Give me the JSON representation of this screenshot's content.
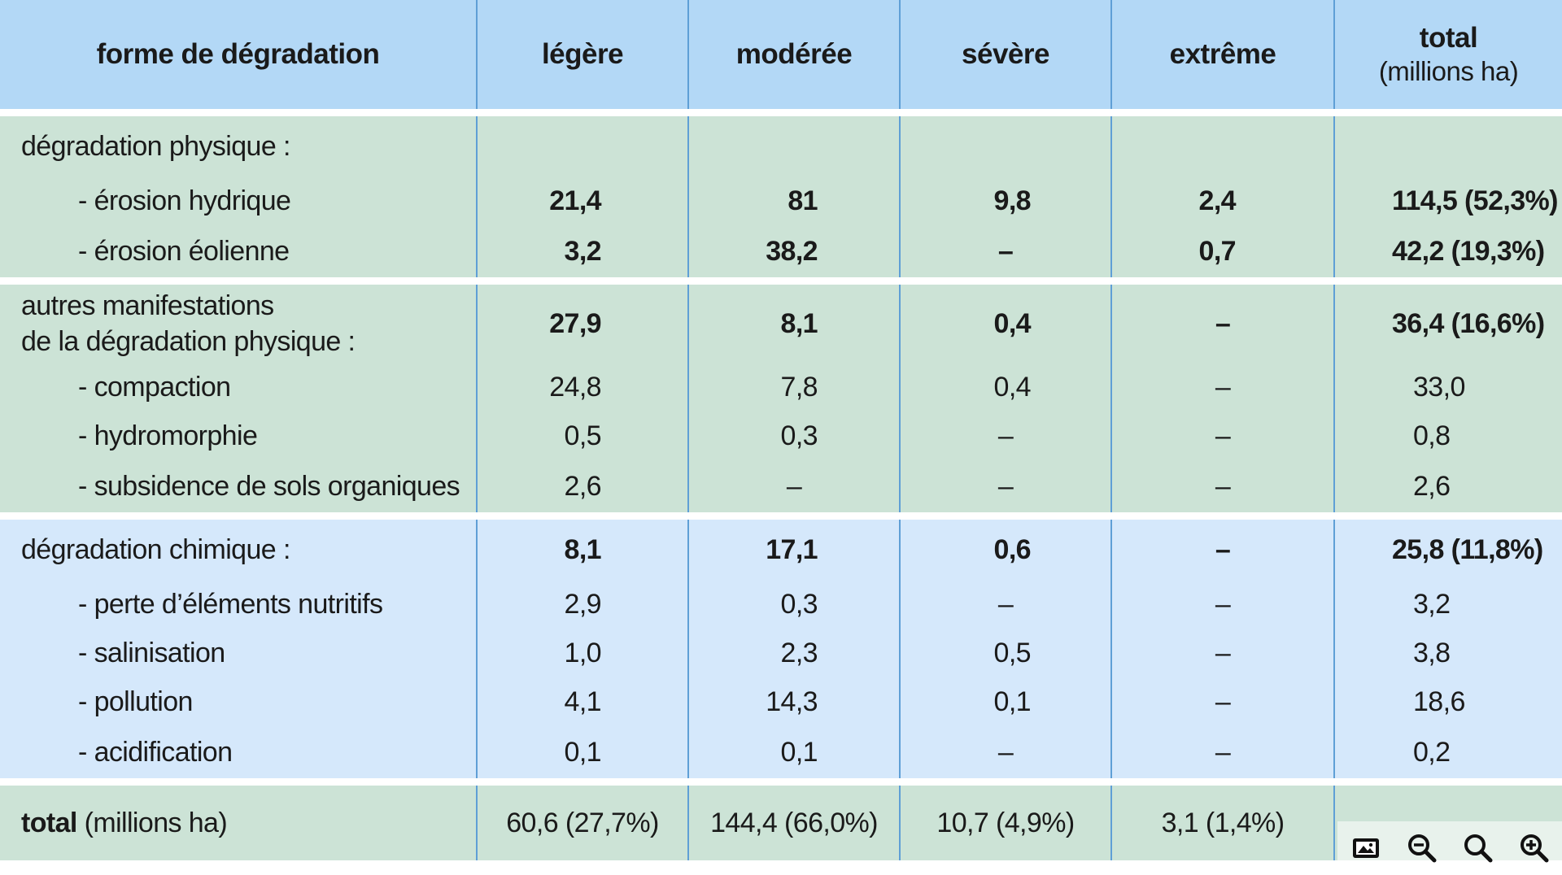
{
  "table": {
    "headers": [
      {
        "label": "forme de dégradation",
        "sub": ""
      },
      {
        "label": "légère",
        "sub": ""
      },
      {
        "label": "modérée",
        "sub": ""
      },
      {
        "label": "sévère",
        "sub": ""
      },
      {
        "label": "extrême",
        "sub": ""
      },
      {
        "label": "total",
        "sub": "(millions ha)"
      }
    ],
    "groups": {
      "physique": {
        "label": "dégradation physique :",
        "rows": [
          {
            "label": "- érosion hydrique",
            "values": [
              "21,4",
              "81",
              "9,8",
              "2,4",
              "114,5 (52,3%)"
            ]
          },
          {
            "label": "- érosion éolienne",
            "values": [
              "3,2",
              "38,2",
              "–",
              "0,7",
              "42,2 (19,3%)"
            ]
          }
        ]
      },
      "autres": {
        "label_line1": "autres manifestations",
        "label_line2": "de la dégradation physique :",
        "values": [
          "27,9",
          "8,1",
          "0,4",
          "–",
          "36,4 (16,6%)"
        ],
        "rows": [
          {
            "label": "- compaction",
            "values": [
              "24,8",
              "7,8",
              "0,4",
              "–",
              "33,0"
            ]
          },
          {
            "label": "- hydromorphie",
            "values": [
              "0,5",
              "0,3",
              "–",
              "–",
              "0,8"
            ]
          },
          {
            "label": "- subsidence de sols organiques",
            "values": [
              "2,6",
              "–",
              "–",
              "–",
              "2,6"
            ]
          }
        ]
      },
      "chimique": {
        "label": "dégradation chimique :",
        "values": [
          "8,1",
          "17,1",
          "0,6",
          "–",
          "25,8 (11,8%)"
        ],
        "rows": [
          {
            "label": "- perte d’éléments nutritifs",
            "values": [
              "2,9",
              "0,3",
              "–",
              "–",
              "3,2"
            ]
          },
          {
            "label": "- salinisation",
            "values": [
              "1,0",
              "2,3",
              "0,5",
              "–",
              "3,8"
            ]
          },
          {
            "label": "- pollution",
            "values": [
              "4,1",
              "14,3",
              "0,1",
              "–",
              "18,6"
            ]
          },
          {
            "label": "- acidification",
            "values": [
              "0,1",
              "0,1",
              "–",
              "–",
              "0,2"
            ]
          }
        ]
      }
    },
    "total": {
      "label_bold": "total",
      "label_rest": " (millions ha)",
      "values": [
        "60,6 (27,7%)",
        "144,4 (66,0%)",
        "10,7 (4,9%)",
        "3,1 (1,4%)"
      ]
    }
  },
  "toolbar": {
    "icons": [
      "image-icon",
      "zoom-out-icon",
      "zoom-reset-icon",
      "zoom-in-icon"
    ]
  },
  "colors": {
    "header_bg": "#b3d8f6",
    "green_bg": "#cce3d6",
    "blue_bg": "#d5e8fb",
    "rule": "#5f9fd6"
  }
}
